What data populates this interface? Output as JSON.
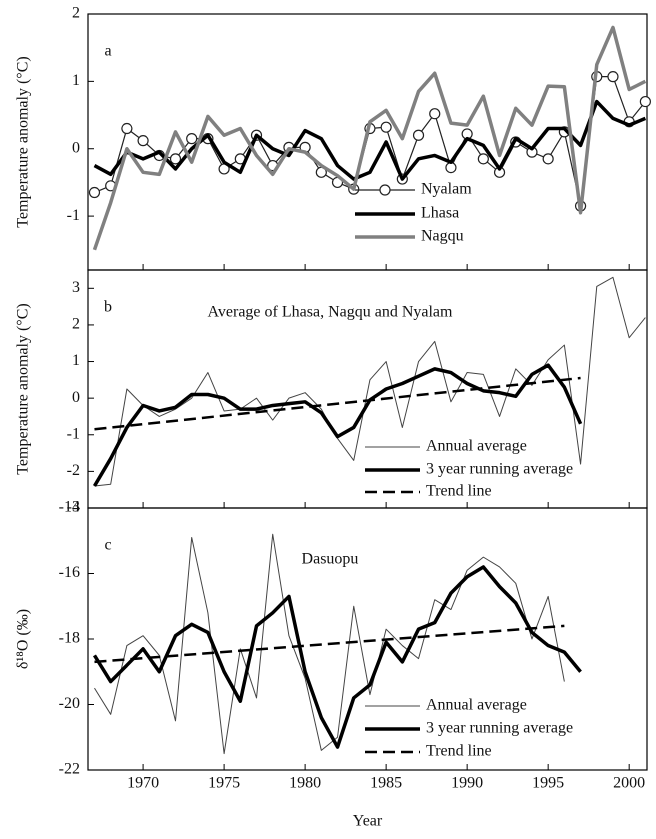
{
  "chart_data": [
    {
      "type": "line",
      "panel_label": "a",
      "ylabel": "Temperature anomaly (°C)",
      "xlim": [
        1966.6,
        2001.1
      ],
      "ylim": [
        -1.8,
        2
      ],
      "yticks": [
        -1,
        0,
        1,
        2
      ],
      "x": [
        1967,
        1968,
        1969,
        1970,
        1971,
        1972,
        1973,
        1974,
        1975,
        1976,
        1977,
        1978,
        1979,
        1980,
        1981,
        1982,
        1983,
        1984,
        1985,
        1986,
        1987,
        1988,
        1989,
        1990,
        1991,
        1992,
        1993,
        1994,
        1995,
        1996,
        1997,
        1998,
        1999,
        2000,
        2001
      ],
      "series": [
        {
          "name": "Nyalam",
          "color": "#222222",
          "linewidth": 1.2,
          "marker": "circle",
          "values": [
            -0.65,
            -0.55,
            0.3,
            0.12,
            -0.1,
            -0.15,
            0.15,
            0.15,
            -0.3,
            -0.15,
            0.2,
            -0.25,
            0.02,
            0.02,
            -0.35,
            -0.5,
            -0.6,
            0.3,
            0.32,
            -0.45,
            0.2,
            0.52,
            -0.28,
            0.22,
            -0.15,
            -0.35,
            0.1,
            -0.05,
            -0.15,
            0.25,
            -0.85,
            1.07,
            1.07,
            0.4,
            0.7
          ]
        },
        {
          "name": "Lhasa",
          "color": "#000000",
          "linewidth": 3.5,
          "values": [
            -0.25,
            -0.38,
            -0.05,
            -0.15,
            -0.05,
            -0.3,
            0.0,
            0.2,
            -0.2,
            -0.35,
            0.2,
            0.0,
            -0.1,
            0.27,
            0.15,
            -0.25,
            -0.45,
            -0.35,
            0.1,
            -0.45,
            -0.15,
            -0.1,
            -0.2,
            0.15,
            0.05,
            -0.3,
            0.15,
            0.0,
            0.3,
            0.3,
            0.05,
            0.7,
            0.45,
            0.35,
            0.45
          ]
        },
        {
          "name": "Nagqu",
          "color": "#808080",
          "linewidth": 3.5,
          "values": [
            -1.5,
            -0.8,
            0.0,
            -0.35,
            -0.38,
            0.25,
            -0.2,
            0.48,
            0.2,
            0.3,
            -0.1,
            -0.38,
            0.0,
            -0.05,
            -0.25,
            -0.4,
            -0.6,
            0.4,
            0.57,
            0.15,
            0.85,
            1.12,
            0.38,
            0.35,
            0.78,
            -0.1,
            0.6,
            0.35,
            0.93,
            0.92,
            -0.95,
            1.25,
            1.8,
            0.88,
            1.0
          ]
        }
      ]
    },
    {
      "type": "line",
      "panel_label": "b",
      "title": "Average of Lhasa, Nagqu and Nyalam",
      "ylabel": "Temperature anomaly (°C)",
      "xlim": [
        1966.6,
        2001.1
      ],
      "ylim": [
        -3,
        3.5
      ],
      "yticks": [
        -3,
        -2,
        -1,
        0,
        1,
        2,
        3
      ],
      "x": [
        1967,
        1968,
        1969,
        1970,
        1971,
        1972,
        1973,
        1974,
        1975,
        1976,
        1977,
        1978,
        1979,
        1980,
        1981,
        1982,
        1983,
        1984,
        1985,
        1986,
        1987,
        1988,
        1989,
        1990,
        1991,
        1992,
        1993,
        1994,
        1995,
        1996,
        1997,
        1998,
        1999,
        2000,
        2001
      ],
      "series": [
        {
          "name": "Annual average",
          "color": "#444444",
          "linewidth": 1,
          "values": [
            -2.4,
            -2.35,
            0.25,
            -0.2,
            -0.5,
            -0.3,
            0.0,
            0.7,
            -0.35,
            -0.3,
            0.0,
            -0.6,
            0.0,
            0.15,
            -0.3,
            -1.1,
            -1.7,
            0.5,
            1.0,
            -0.8,
            1.0,
            1.55,
            -0.1,
            0.7,
            0.65,
            -0.5,
            0.8,
            0.35,
            1.05,
            1.45,
            -1.8,
            3.05,
            3.3,
            1.65,
            2.2
          ]
        },
        {
          "name": "3 year running average",
          "color": "#000000",
          "linewidth": 3.5,
          "values": [
            -2.4,
            -1.65,
            -0.8,
            -0.2,
            -0.35,
            -0.25,
            0.1,
            0.1,
            0.0,
            -0.3,
            -0.3,
            -0.2,
            -0.15,
            -0.1,
            -0.4,
            -1.05,
            -0.8,
            -0.05,
            0.25,
            0.4,
            0.6,
            0.8,
            0.7,
            0.4,
            0.2,
            0.15,
            0.05,
            0.65,
            0.9,
            0.3,
            -0.7,
            null,
            null,
            null,
            null
          ]
        },
        {
          "name": "Trend line",
          "color": "#000000",
          "linewidth": 2.5,
          "style": "dashed",
          "x": [
            1967,
            1997
          ],
          "values": [
            -0.85,
            0.55
          ]
        }
      ]
    },
    {
      "type": "line",
      "panel_label": "c",
      "title": "Dasuopu",
      "ylabel": "δ¹⁸O (‰)",
      "xlabel": "Year",
      "xlim": [
        1966.6,
        2001.1
      ],
      "xticks": [
        1970,
        1975,
        1980,
        1985,
        1990,
        1995,
        2000
      ],
      "ylim": [
        -22,
        -14
      ],
      "yticks": [
        -22,
        -20,
        -18,
        -16,
        -14
      ],
      "x": [
        1967,
        1968,
        1969,
        1970,
        1971,
        1972,
        1973,
        1974,
        1975,
        1976,
        1977,
        1978,
        1979,
        1980,
        1981,
        1982,
        1983,
        1984,
        1985,
        1986,
        1987,
        1988,
        1989,
        1990,
        1991,
        1992,
        1993,
        1994,
        1995,
        1996,
        1997
      ],
      "series": [
        {
          "name": "Annual average",
          "color": "#444444",
          "linewidth": 1,
          "values": [
            -19.5,
            -20.3,
            -18.2,
            -17.9,
            -18.5,
            -20.5,
            -14.9,
            -17.2,
            -21.5,
            -18.3,
            -19.8,
            -14.8,
            -17.9,
            -19.2,
            -21.4,
            -21.0,
            -17.0,
            -19.7,
            -17.7,
            -18.2,
            -18.6,
            -16.8,
            -17.1,
            -15.9,
            -15.5,
            -15.8,
            -16.3,
            -18.0,
            -16.7,
            -19.3,
            null
          ]
        },
        {
          "name": "3 year running average",
          "color": "#000000",
          "linewidth": 3.5,
          "values": [
            -18.5,
            -19.3,
            -18.8,
            -18.3,
            -19.0,
            -17.9,
            -17.55,
            -17.8,
            -19.0,
            -19.9,
            -17.6,
            -17.2,
            -16.7,
            -19.0,
            -20.4,
            -21.3,
            -19.8,
            -19.4,
            -18.1,
            -18.7,
            -17.7,
            -17.5,
            -16.6,
            -16.1,
            -15.8,
            -16.4,
            -16.9,
            -17.8,
            -18.2,
            -18.4,
            -19.0
          ]
        },
        {
          "name": "Trend line",
          "color": "#000000",
          "linewidth": 2.5,
          "style": "dashed",
          "x": [
            1967,
            1996
          ],
          "values": [
            -18.7,
            -17.6
          ]
        }
      ]
    }
  ]
}
